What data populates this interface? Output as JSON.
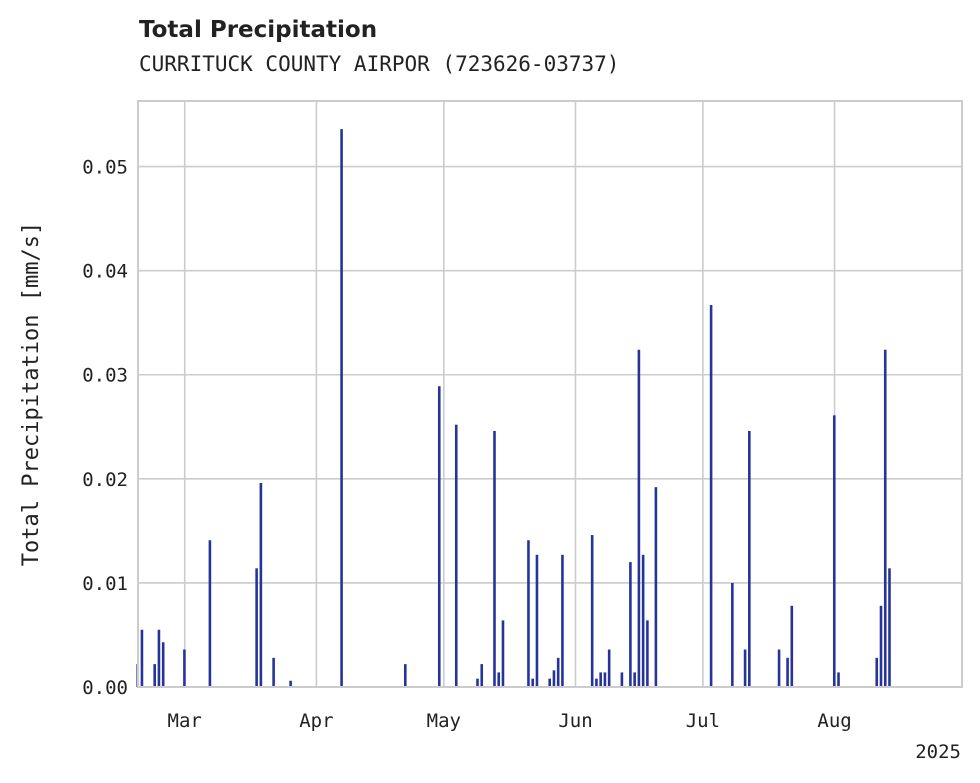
{
  "header": {
    "title": "Total Precipitation",
    "subtitle": "CURRITUCK COUNTY AIRPOR (723626-03737)"
  },
  "chart_data": {
    "type": "bar",
    "title": "Total Precipitation",
    "subtitle": "CURRITUCK COUNTY AIRPOR (723626-03737)",
    "xlabel": "",
    "ylabel": "Total Precipitation [mm/s]",
    "xlim": [
      "2025-02-18",
      "2025-08-31"
    ],
    "ylim": [
      0,
      0.0563
    ],
    "x_ticks": [
      {
        "date": "2025-03-01",
        "label": "Mar"
      },
      {
        "date": "2025-04-01",
        "label": "Apr"
      },
      {
        "date": "2025-05-01",
        "label": "May"
      },
      {
        "date": "2025-06-01",
        "label": "Jun"
      },
      {
        "date": "2025-07-01",
        "label": "Jul"
      },
      {
        "date": "2025-08-01",
        "label": "Aug"
      }
    ],
    "x_offset_label": "2025",
    "y_ticks": [
      "0.00",
      "0.01",
      "0.02",
      "0.03",
      "0.04",
      "0.05"
    ],
    "y_tick_values": [
      0,
      0.01,
      0.02,
      0.03,
      0.04,
      0.05
    ],
    "grid": true,
    "color": "#26349a",
    "x": [
      "2025-02-18",
      "2025-02-19",
      "2025-02-22",
      "2025-02-23",
      "2025-02-24",
      "2025-03-01",
      "2025-03-07",
      "2025-03-18",
      "2025-03-19",
      "2025-03-22",
      "2025-03-26",
      "2025-04-07",
      "2025-04-22",
      "2025-04-30",
      "2025-05-04",
      "2025-05-09",
      "2025-05-10",
      "2025-05-13",
      "2025-05-14",
      "2025-05-15",
      "2025-05-21",
      "2025-05-22",
      "2025-05-23",
      "2025-05-26",
      "2025-05-27",
      "2025-05-28",
      "2025-05-29",
      "2025-06-05",
      "2025-06-06",
      "2025-06-07",
      "2025-06-08",
      "2025-06-09",
      "2025-06-12",
      "2025-06-14",
      "2025-06-15",
      "2025-06-16",
      "2025-06-17",
      "2025-06-18",
      "2025-06-20",
      "2025-07-03",
      "2025-07-08",
      "2025-07-11",
      "2025-07-12",
      "2025-07-19",
      "2025-07-21",
      "2025-07-22",
      "2025-08-01",
      "2025-08-02",
      "2025-08-11",
      "2025-08-12",
      "2025-08-13",
      "2025-08-14"
    ],
    "values": [
      0.0022,
      0.0055,
      0.0022,
      0.0055,
      0.0043,
      0.0036,
      0.0141,
      0.0114,
      0.0196,
      0.0028,
      0.0006,
      0.0536,
      0.0022,
      0.0289,
      0.0252,
      0.0008,
      0.0022,
      0.0246,
      0.0014,
      0.0064,
      0.0141,
      0.0008,
      0.0127,
      0.0008,
      0.0016,
      0.0028,
      0.0127,
      0.0146,
      0.0008,
      0.0014,
      0.0014,
      0.0036,
      0.0014,
      0.012,
      0.0014,
      0.0324,
      0.0127,
      0.0064,
      0.0192,
      0.0367,
      0.01,
      0.0036,
      0.0246,
      0.0036,
      0.0028,
      0.0078,
      0.0261,
      0.0014,
      0.0028,
      0.0078,
      0.0324,
      0.0114
    ]
  }
}
